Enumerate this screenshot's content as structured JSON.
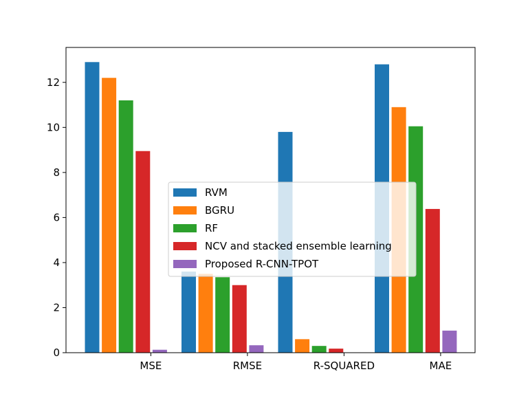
{
  "chart_data": {
    "type": "bar",
    "categories": [
      "MSE",
      "RMSE",
      "R-SQUARED",
      "MAE"
    ],
    "series": [
      {
        "name": "RVM",
        "color": "#1f77b4",
        "values": [
          12.9,
          3.6,
          9.8,
          12.8
        ]
      },
      {
        "name": "BGRU",
        "color": "#ff7f0e",
        "values": [
          12.2,
          3.5,
          0.6,
          10.9
        ]
      },
      {
        "name": "RF",
        "color": "#2ca02c",
        "values": [
          11.2,
          3.35,
          0.3,
          10.05
        ]
      },
      {
        "name": "NCV and stacked ensemble learning",
        "color": "#d62728",
        "values": [
          8.95,
          3.0,
          0.18,
          6.38
        ]
      },
      {
        "name": "Proposed R-CNN-TPOT",
        "color": "#9467bd",
        "values": [
          0.13,
          0.33,
          0.01,
          0.98
        ]
      }
    ],
    "yticks": [
      "0",
      "2",
      "4",
      "6",
      "8",
      "10",
      "12"
    ],
    "ylim": [
      0,
      13.55
    ],
    "legend_position": "center",
    "title": "",
    "xlabel": "",
    "ylabel": ""
  }
}
